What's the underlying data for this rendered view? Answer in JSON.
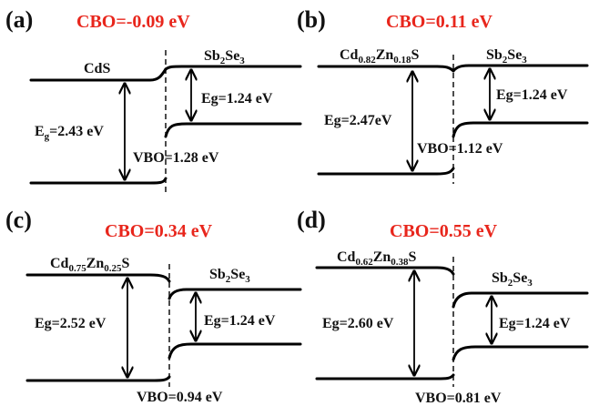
{
  "panels": [
    {
      "label": "(a)",
      "cbo": "CBO=-0.09 eV",
      "left_material": {
        "base": "CdS",
        "parts": []
      },
      "right_material": {
        "parts": [
          [
            "Sb",
            "2"
          ],
          [
            "Se",
            "3"
          ]
        ]
      },
      "left_eg": "E",
      "left_eg_sub": "g",
      "left_eg_tail": "=2.43 eV",
      "right_eg": "Eg=1.24 eV",
      "vbo": "VBO=1.28 eV"
    },
    {
      "label": "(b)",
      "cbo": "CBO=0.11 eV",
      "left_material": {
        "parts": [
          [
            "Cd",
            "0.82"
          ],
          [
            "Zn",
            "0.18"
          ],
          [
            "S",
            ""
          ]
        ]
      },
      "right_material": {
        "parts": [
          [
            "Sb",
            "2"
          ],
          [
            "Se",
            "3"
          ]
        ]
      },
      "left_eg": "Eg=2.47eV",
      "right_eg": "Eg=1.24 eV",
      "vbo": "VBO=1.12 eV"
    },
    {
      "label": "(c)",
      "cbo": "CBO=0.34 eV",
      "left_material": {
        "parts": [
          [
            "Cd",
            "0.75"
          ],
          [
            "Zn",
            "0.25"
          ],
          [
            "S",
            ""
          ]
        ]
      },
      "right_material": {
        "parts": [
          [
            "Sb",
            "2"
          ],
          [
            "Se",
            "3"
          ]
        ]
      },
      "left_eg": "Eg=2.52 eV",
      "right_eg": "Eg=1.24 eV",
      "vbo": "VBO=0.94 eV"
    },
    {
      "label": "(d)",
      "cbo": "CBO=0.55 eV",
      "left_material": {
        "parts": [
          [
            "Cd",
            "0.62"
          ],
          [
            "Zn",
            "0.38"
          ],
          [
            "S",
            ""
          ]
        ]
      },
      "right_material": {
        "parts": [
          [
            "Sb",
            "2"
          ],
          [
            "Se",
            "3"
          ]
        ]
      },
      "left_eg": "Eg=2.60 eV",
      "right_eg": "Eg=1.24 eV",
      "vbo": "VBO=0.81 eV"
    }
  ],
  "colors": {
    "cbo": "#e8261c",
    "lines": "#000000"
  }
}
